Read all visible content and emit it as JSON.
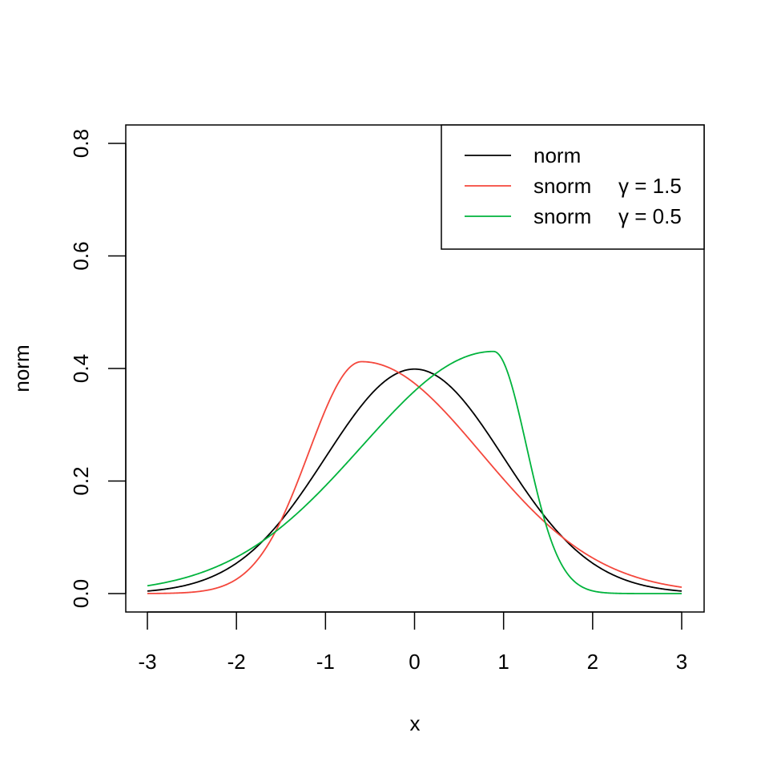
{
  "chart_data": {
    "type": "line",
    "title": "",
    "xlabel": "x",
    "ylabel": "norm",
    "xlim": [
      -3,
      3
    ],
    "ylim": [
      0,
      0.8
    ],
    "x_ticks": [
      "-3",
      "-2",
      "-1",
      "0",
      "1",
      "2",
      "3"
    ],
    "y_ticks": [
      "0.0",
      "0.2",
      "0.4",
      "0.6",
      "0.8"
    ],
    "grid": false,
    "legend_placement": "top-right",
    "series": [
      {
        "name": "norm",
        "label_main": "norm",
        "label_param": "",
        "distribution": "normal",
        "gamma": 1.0,
        "color": "#000000",
        "mode_x": 0.0,
        "peak_y": 0.399
      },
      {
        "name": "snorm γ = 1.5",
        "label_main": "snorm",
        "label_param": "γ = 1.5",
        "distribution": "skew-normal",
        "gamma": 1.5,
        "color": "#F4473C",
        "mode_x": -0.59,
        "peak_y": 0.412
      },
      {
        "name": "snorm γ = 0.5",
        "label_main": "snorm",
        "label_param": "γ = 0.5",
        "distribution": "skew-normal",
        "gamma": 0.5,
        "color": "#00B33C",
        "mode_x": 0.89,
        "peak_y": 0.43
      }
    ]
  }
}
